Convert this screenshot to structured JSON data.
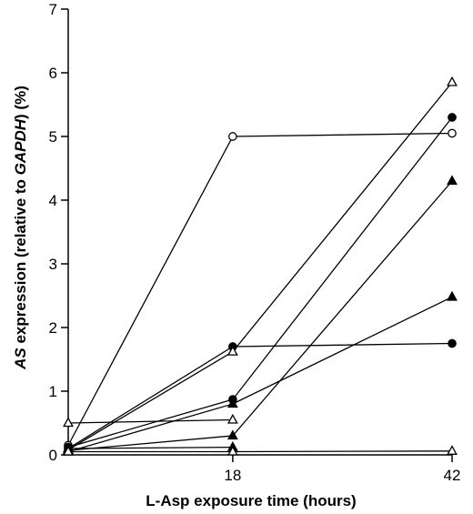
{
  "chart_data": {
    "type": "line",
    "xlabel": "L-Asp exposure time (hours)",
    "ylabel_parts": [
      {
        "text": "AS",
        "italic": true
      },
      {
        "text": " expression (relative to ",
        "italic": false
      },
      {
        "text": "GAPDH",
        "italic": true
      },
      {
        "text": ") (%)",
        "italic": false
      }
    ],
    "x_ticks": [
      18,
      42
    ],
    "y_ticks": [
      0,
      1,
      2,
      3,
      4,
      5,
      6,
      7
    ],
    "xlim": [
      0,
      42
    ],
    "ylim": [
      0,
      7
    ],
    "series": [
      {
        "marker": "open-circle",
        "values": [
          [
            0,
            0.15
          ],
          [
            18,
            5.0
          ],
          [
            42,
            5.05
          ]
        ]
      },
      {
        "marker": "filled-circle",
        "values": [
          [
            0,
            0.1
          ],
          [
            18,
            1.7
          ],
          [
            42,
            1.75
          ]
        ]
      },
      {
        "marker": "filled-circle",
        "values": [
          [
            0,
            0.12
          ],
          [
            18,
            0.87
          ],
          [
            42,
            5.3
          ]
        ]
      },
      {
        "marker": "open-triangle",
        "values": [
          [
            0,
            0.08
          ],
          [
            18,
            1.62
          ],
          [
            42,
            5.85
          ]
        ]
      },
      {
        "marker": "filled-triangle",
        "values": [
          [
            0,
            0.05
          ],
          [
            18,
            0.8
          ],
          [
            42,
            2.48
          ]
        ]
      },
      {
        "marker": "filled-triangle",
        "values": [
          [
            0,
            0.07
          ],
          [
            18,
            0.3
          ],
          [
            42,
            4.3
          ]
        ]
      },
      {
        "marker": "open-triangle",
        "values": [
          [
            0,
            0.5
          ],
          [
            18,
            0.55
          ]
        ]
      },
      {
        "marker": "filled-triangle",
        "values": [
          [
            0,
            0.1
          ],
          [
            18,
            0.12
          ]
        ]
      },
      {
        "marker": "open-triangle",
        "values": [
          [
            0,
            0.05
          ],
          [
            18,
            0.05
          ],
          [
            42,
            0.06
          ]
        ]
      }
    ]
  }
}
